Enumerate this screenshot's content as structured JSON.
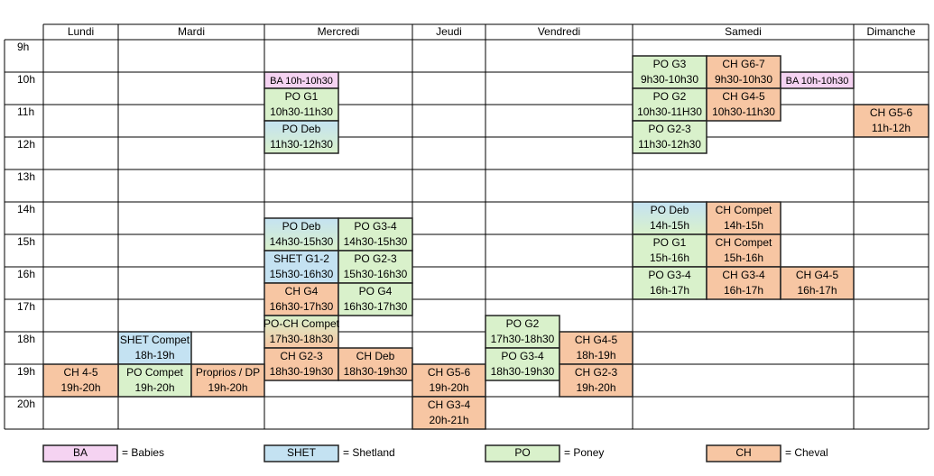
{
  "days": [
    "Lundi",
    "Mardi",
    "Mercredi",
    "Jeudi",
    "Vendredi",
    "Samedi",
    "Dimanche"
  ],
  "hours": [
    "9h",
    "10h",
    "11h",
    "12h",
    "13h",
    "14h",
    "15h",
    "16h",
    "17h",
    "18h",
    "19h",
    "20h"
  ],
  "events": [
    {
      "label": "BA 10h-10h30"
    },
    {
      "label": "PO G1",
      "time": "10h30-11h30"
    },
    {
      "label": "PO Deb",
      "time": "11h30-12h30"
    },
    {
      "label": "PO Deb",
      "time": "14h30-15h30"
    },
    {
      "label": "PO G3-4",
      "time": "14h30-15h30"
    },
    {
      "label": "SHET G1-2",
      "time": "15h30-16h30"
    },
    {
      "label": "PO G2-3",
      "time": "15h30-16h30"
    },
    {
      "label": "CH G4",
      "time": "16h30-17h30"
    },
    {
      "label": "PO G4",
      "time": "16h30-17h30"
    },
    {
      "label": "PO-CH Compet",
      "time": "17h30-18h30"
    },
    {
      "label": "CH G2-3",
      "time": "18h30-19h30"
    },
    {
      "label": "CH Deb",
      "time": "18h30-19h30"
    },
    {
      "label": "SHET Compet",
      "time": "18h-19h"
    },
    {
      "label": "PO Compet",
      "time": "19h-20h"
    },
    {
      "label": "Proprios / DP",
      "time": "19h-20h"
    },
    {
      "label": "CH 4-5",
      "time": "19h-20h"
    },
    {
      "label": "CH G5-6",
      "time": "19h-20h"
    },
    {
      "label": "CH G3-4",
      "time": "20h-21h"
    },
    {
      "label": "PO G2",
      "time": "17h30-18h30"
    },
    {
      "label": "PO G3-4",
      "time": "18h30-19h30"
    },
    {
      "label": "CH G4-5",
      "time": "18h-19h"
    },
    {
      "label": "CH G2-3",
      "time": "19h-20h"
    },
    {
      "label": "PO G3",
      "time": "9h30-10h30"
    },
    {
      "label": "CH G6-7",
      "time": "9h30-10h30"
    },
    {
      "label": "BA 10h-10h30"
    },
    {
      "label": "PO G2",
      "time": "10h30-11H30"
    },
    {
      "label": "CH G4-5",
      "time": "10h30-11h30"
    },
    {
      "label": "PO G2-3",
      "time": "11h30-12h30"
    },
    {
      "label": "PO Deb",
      "time": "14h-15h"
    },
    {
      "label": "CH Compet",
      "time": "14h-15h"
    },
    {
      "label": "PO G1",
      "time": "15h-16h"
    },
    {
      "label": "CH Compet",
      "time": "15h-16h"
    },
    {
      "label": "PO G3-4",
      "time": "16h-17h"
    },
    {
      "label": "CH G3-4",
      "time": "16h-17h"
    },
    {
      "label": "CH G4-5",
      "time": "16h-17h"
    },
    {
      "label": "CH G5-6",
      "time": "11h-12h"
    }
  ],
  "legend": [
    {
      "code": "BA",
      "meaning": "= Babies"
    },
    {
      "code": "SHET",
      "meaning": "= Shetland"
    },
    {
      "code": "PO",
      "meaning": "= Poney"
    },
    {
      "code": "CH",
      "meaning": "= Cheval"
    }
  ]
}
